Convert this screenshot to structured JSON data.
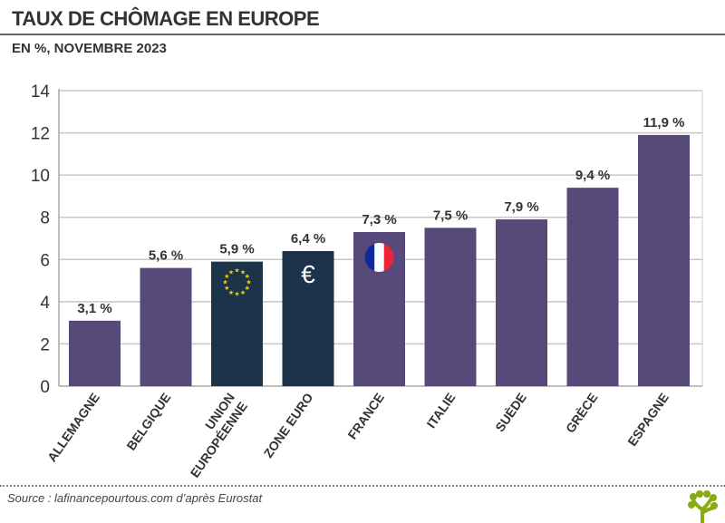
{
  "header": {
    "title": "TAUX DE CHÔMAGE EN EUROPE",
    "subtitle": "EN %, NOVEMBRE 2023"
  },
  "footer": {
    "source": "Source : lafinancepourtous.com d’après Eurostat",
    "logo": "tree-logo"
  },
  "chart_data": {
    "type": "bar",
    "title": "TAUX DE CHÔMAGE EN EUROPE",
    "subtitle": "EN %, NOVEMBRE 2023",
    "categories": [
      [
        "ALLEMAGNE"
      ],
      [
        "BELGIQUE"
      ],
      [
        "UNION",
        "EUROPÉENNE"
      ],
      [
        "ZONE EURO"
      ],
      [
        "FRANCE"
      ],
      [
        "ITALIE"
      ],
      [
        "SUÈDE"
      ],
      [
        "GRÈCE"
      ],
      [
        "ESPAGNE"
      ]
    ],
    "values": [
      3.1,
      5.6,
      5.9,
      6.4,
      7.3,
      7.5,
      7.9,
      9.4,
      11.9
    ],
    "data_labels": [
      "3,1 %",
      "5,6 %",
      "5,9 %",
      "6,4 %",
      "7,3 %",
      "7,5 %",
      "7,9 %",
      "9,4 %",
      "11,9 %"
    ],
    "bar_colors": [
      "#574a7a",
      "#574a7a",
      "#1c3449",
      "#1c3449",
      "#574a7a",
      "#574a7a",
      "#574a7a",
      "#574a7a",
      "#574a7a"
    ],
    "bar_icons": [
      "",
      "",
      "eu-stars-icon",
      "euro-icon",
      "france-flag-icon",
      "",
      "",
      "",
      ""
    ],
    "euro_symbol": "€",
    "yticks": [
      0,
      2,
      4,
      6,
      8,
      10,
      12,
      14
    ],
    "ylim": [
      0,
      14
    ],
    "grid": true,
    "xlabel": "",
    "ylabel": ""
  }
}
